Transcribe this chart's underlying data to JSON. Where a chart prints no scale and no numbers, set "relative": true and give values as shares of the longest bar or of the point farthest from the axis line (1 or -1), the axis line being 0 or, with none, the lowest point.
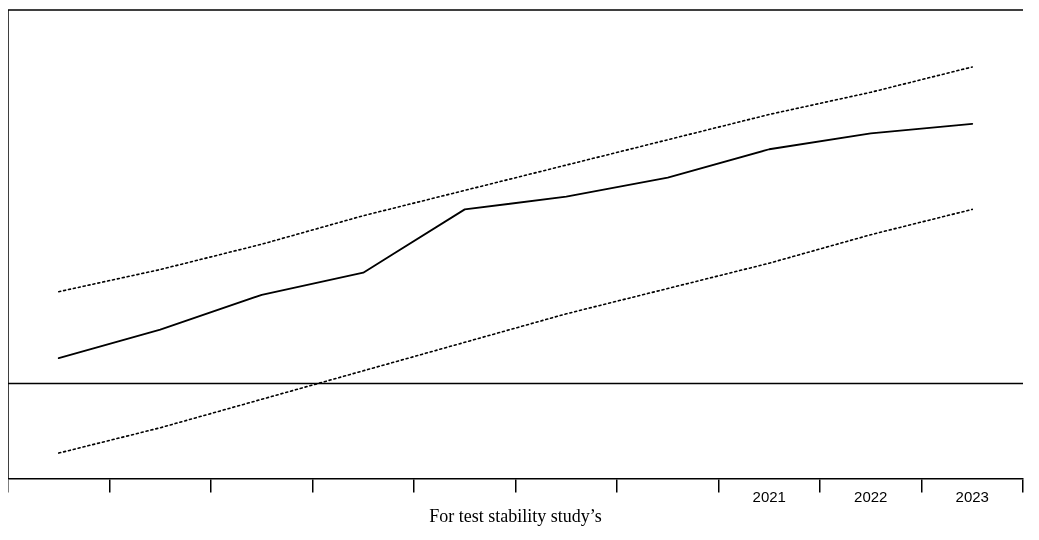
{
  "chart_data": {
    "type": "line",
    "relative": true,
    "xlabel": "For test stability study’s",
    "categories": [
      null,
      null,
      null,
      null,
      null,
      null,
      null,
      "2021",
      "2022",
      "2023"
    ],
    "series": [
      {
        "color": "#000000",
        "line_style": "solid",
        "values": [
          0.08,
          0.17,
          0.28,
          0.35,
          0.55,
          0.59,
          0.65,
          0.74,
          0.79,
          0.82
        ]
      },
      {
        "color": "#000000",
        "line_style": "dotted",
        "values": [
          0.29,
          0.36,
          0.44,
          0.53,
          0.61,
          0.69,
          0.77,
          0.85,
          0.92,
          1
        ]
      },
      {
        "color": "#000000",
        "line_style": "dotted",
        "values": [
          -0.22,
          -0.14,
          -0.05,
          0.04,
          0.13,
          0.22,
          0.3,
          0.38,
          0.47,
          0.55
        ]
      }
    ],
    "marker": "none",
    "grid": false,
    "legend": false
  }
}
